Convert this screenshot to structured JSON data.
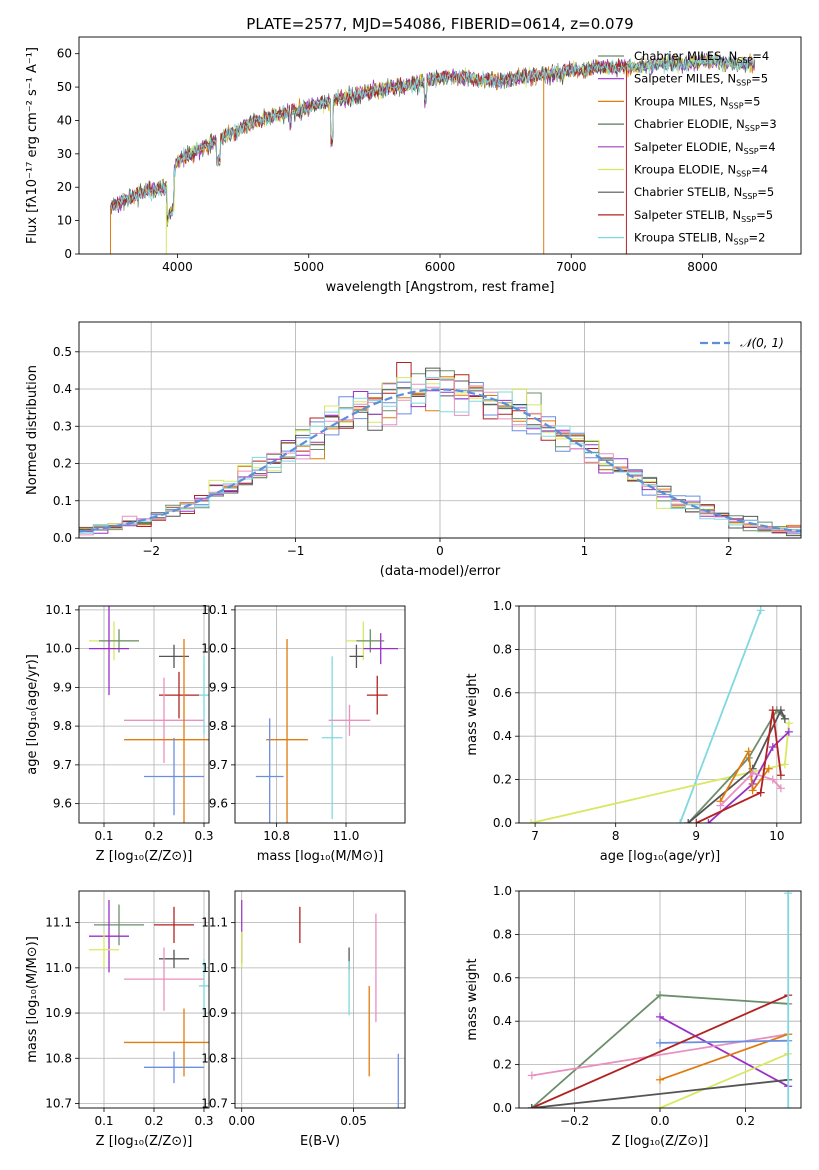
{
  "figure_title": "PLATE=2577, MJD=54086, FIBERID=0614, z=0.079",
  "colors": {
    "s1": "#6b8e6b",
    "s2": "#9b30c9",
    "s3": "#e07b10",
    "s4": "#5a7a5a",
    "s5": "#a040c0",
    "s6": "#d8e860",
    "s7": "#555555",
    "s8": "#b22222",
    "s9": "#80d8e0",
    "s10": "#6a8ee0",
    "s11": "#e890c0",
    "gauss": "#5b8fd9"
  },
  "chart_data": [
    {
      "type": "line",
      "xlabel": "wavelength [Angstrom, rest frame]",
      "ylabel": "Flux [fλ10⁻¹⁷ erg cm⁻² s⁻¹ A⁻¹]",
      "xlim": [
        3250,
        8750
      ],
      "ylim": [
        0,
        65
      ],
      "xticks": [
        4000,
        5000,
        6000,
        7000,
        8000
      ],
      "yticks": [
        0,
        10,
        20,
        30,
        40,
        50,
        60
      ],
      "legend_position": "top-right",
      "legend": [
        {
          "label": "Chabrier MILES, N",
          "sub": "SSP",
          "tail": "=4"
        },
        {
          "label": "Salpeter MILES, N",
          "sub": "SSP",
          "tail": "=5"
        },
        {
          "label": "Kroupa MILES, N",
          "sub": "SSP",
          "tail": "=5"
        },
        {
          "label": "Chabrier ELODIE, N",
          "sub": "SSP",
          "tail": "=3"
        },
        {
          "label": "Salpeter ELODIE, N",
          "sub": "SSP",
          "tail": "=4"
        },
        {
          "label": "Kroupa ELODIE, N",
          "sub": "SSP",
          "tail": "=4"
        },
        {
          "label": "Chabrier STELIB, N",
          "sub": "SSP",
          "tail": "=5"
        },
        {
          "label": "Salpeter STELIB, N",
          "sub": "SSP",
          "tail": "=5"
        },
        {
          "label": "Kroupa STELIB, N",
          "sub": "SSP",
          "tail": "=2"
        }
      ],
      "spectrum_envelope": {
        "x": [
          3500,
          3600,
          3700,
          3800,
          3900,
          3950,
          4000,
          4100,
          4200,
          4300,
          4400,
          4500,
          4600,
          4700,
          4800,
          4900,
          5000,
          5100,
          5200,
          5300,
          5400,
          5500,
          5600,
          5700,
          5800,
          5900,
          6000,
          6100,
          6200,
          6300,
          6400,
          6500,
          6600,
          6700,
          6800,
          6900,
          7000,
          7100,
          7200,
          7300,
          7400,
          7500,
          7600,
          7700,
          7800,
          7900,
          8000,
          8100,
          8200,
          8300
        ],
        "y": [
          14,
          16,
          18,
          19,
          20,
          22,
          28,
          30,
          32,
          34,
          36,
          38,
          40,
          41,
          42,
          43,
          44,
          45,
          46,
          47,
          48,
          49,
          50,
          50,
          51,
          52,
          53,
          53,
          53,
          52,
          52,
          52,
          53,
          53,
          54,
          54,
          55,
          55,
          56,
          56,
          56,
          56,
          57,
          57,
          57,
          57,
          58,
          58,
          57,
          57
        ]
      }
    },
    {
      "type": "bar",
      "xlabel": "(data-model)/error",
      "ylabel": "Normed distribution",
      "xlim": [
        -2.5,
        2.5
      ],
      "ylim": [
        0,
        0.58
      ],
      "xticks": [
        -2,
        -1,
        0,
        1,
        2
      ],
      "yticks": [
        0.0,
        0.1,
        0.2,
        0.3,
        0.4,
        0.5
      ],
      "legend_position": "top-right",
      "legend": [
        {
          "label": "𝒩(0, 1)"
        }
      ],
      "bin_width": 0.1
    },
    {
      "type": "scatter",
      "xlabel": "Z [log₁₀(Z/Z⊙)]",
      "ylabel": "age  [log₁₀(age/yr)]",
      "xlim": [
        0.05,
        0.31
      ],
      "ylim": [
        9.55,
        10.11
      ],
      "xticks": [
        0.1,
        0.2,
        0.3
      ],
      "yticks": [
        9.6,
        9.7,
        9.8,
        9.9,
        10.0,
        10.1
      ],
      "points": [
        {
          "x": 0.12,
          "y": 10.02,
          "xerr": 0.05,
          "yerr": 0.05,
          "c": "s6"
        },
        {
          "x": 0.13,
          "y": 10.02,
          "xerr": 0.04,
          "yerr": 0.03,
          "c": "s1"
        },
        {
          "x": 0.11,
          "y": 10.0,
          "xerr": 0.04,
          "yerr": 0.12,
          "c": "s2"
        },
        {
          "x": 0.24,
          "y": 9.98,
          "xerr": 0.03,
          "yerr": 0.03,
          "c": "s7"
        },
        {
          "x": 0.25,
          "y": 9.88,
          "xerr": 0.04,
          "yerr": 0.06,
          "c": "s8"
        },
        {
          "x": 0.3,
          "y": 9.88,
          "xerr": 0.01,
          "yerr": 0.1,
          "c": "s9"
        },
        {
          "x": 0.22,
          "y": 9.815,
          "xerr": 0.08,
          "yerr": 0.11,
          "c": "s11"
        },
        {
          "x": 0.26,
          "y": 9.765,
          "xerr": 0.12,
          "yerr": 0.26,
          "c": "s3"
        },
        {
          "x": 0.24,
          "y": 9.67,
          "xerr": 0.06,
          "yerr": 0.1,
          "c": "s10"
        }
      ]
    },
    {
      "type": "scatter",
      "xlabel": "mass [log₁₀(M/M⊙)]",
      "ylabel": "",
      "xlim": [
        10.68,
        11.17
      ],
      "ylim": [
        9.55,
        10.11
      ],
      "xticks": [
        10.8,
        11.0
      ],
      "yticks": [
        9.6,
        9.7,
        9.8,
        9.9,
        10.0,
        10.1
      ],
      "points": [
        {
          "x": 11.05,
          "y": 10.02,
          "xerr": 0.05,
          "yerr": 0.05,
          "c": "s6"
        },
        {
          "x": 11.07,
          "y": 10.02,
          "xerr": 0.04,
          "yerr": 0.03,
          "c": "s1"
        },
        {
          "x": 11.1,
          "y": 10.0,
          "xerr": 0.05,
          "yerr": 0.04,
          "c": "s2"
        },
        {
          "x": 11.03,
          "y": 9.98,
          "xerr": 0.02,
          "yerr": 0.03,
          "c": "s7"
        },
        {
          "x": 11.09,
          "y": 9.88,
          "xerr": 0.03,
          "yerr": 0.05,
          "c": "s8"
        },
        {
          "x": 10.96,
          "y": 9.77,
          "xerr": 0.03,
          "yerr": 0.21,
          "c": "s9"
        },
        {
          "x": 11.01,
          "y": 9.815,
          "xerr": 0.06,
          "yerr": 0.04,
          "c": "s11"
        },
        {
          "x": 10.83,
          "y": 9.765,
          "xerr": 0.06,
          "yerr": 0.26,
          "c": "s3"
        },
        {
          "x": 10.78,
          "y": 9.67,
          "xerr": 0.04,
          "yerr": 0.15,
          "c": "s10"
        }
      ]
    },
    {
      "type": "line",
      "xlabel": "age  [log₁₀(age/yr)]",
      "ylabel": "mass weight",
      "xlim": [
        6.8,
        10.3
      ],
      "ylim": [
        0,
        1.0
      ],
      "xticks": [
        7,
        8,
        9,
        10
      ],
      "yticks": [
        0.0,
        0.2,
        0.4,
        0.6,
        0.8,
        1.0
      ],
      "series": [
        {
          "c": "s9",
          "x": [
            8.8,
            9.8
          ],
          "y": [
            0.0,
            0.98
          ]
        },
        {
          "c": "s6",
          "x": [
            6.95,
            10.1,
            10.15
          ],
          "y": [
            0.0,
            0.27,
            0.46
          ]
        },
        {
          "c": "s1",
          "x": [
            8.9,
            9.65,
            10.0,
            10.1
          ],
          "y": [
            0.0,
            0.3,
            0.52,
            0.48
          ]
        },
        {
          "c": "s7",
          "x": [
            8.9,
            9.7,
            10.05,
            10.1
          ],
          "y": [
            0.0,
            0.25,
            0.52,
            0.48
          ]
        },
        {
          "c": "s2",
          "x": [
            9.15,
            9.7,
            9.95,
            10.15
          ],
          "y": [
            0.0,
            0.18,
            0.35,
            0.42
          ]
        },
        {
          "c": "s3",
          "x": [
            9.3,
            9.65,
            9.7,
            9.9
          ],
          "y": [
            0.1,
            0.33,
            0.15,
            0.25
          ]
        },
        {
          "c": "s11",
          "x": [
            9.3,
            9.7,
            9.95,
            10.05
          ],
          "y": [
            0.08,
            0.23,
            0.2,
            0.16
          ]
        },
        {
          "c": "s8",
          "x": [
            9.0,
            9.8,
            9.95,
            10.05
          ],
          "y": [
            0.0,
            0.14,
            0.52,
            0.22
          ]
        }
      ]
    },
    {
      "type": "scatter",
      "xlabel": "Z [log₁₀(Z/Z⊙)]",
      "ylabel": "mass [log₁₀(M/M⊙)]",
      "xlim": [
        0.05,
        0.31
      ],
      "ylim": [
        10.69,
        11.17
      ],
      "xticks": [
        0.1,
        0.2,
        0.3
      ],
      "yticks": [
        10.7,
        10.8,
        10.9,
        11.0,
        11.1
      ],
      "points": [
        {
          "x": 0.13,
          "y": 11.095,
          "xerr": 0.05,
          "yerr": 0.045,
          "c": "s1"
        },
        {
          "x": 0.11,
          "y": 11.07,
          "xerr": 0.04,
          "yerr": 0.08,
          "c": "s2"
        },
        {
          "x": 0.1,
          "y": 11.04,
          "xerr": 0.03,
          "yerr": 0.04,
          "c": "s6"
        },
        {
          "x": 0.24,
          "y": 11.095,
          "xerr": 0.04,
          "yerr": 0.04,
          "c": "s8"
        },
        {
          "x": 0.24,
          "y": 11.02,
          "xerr": 0.03,
          "yerr": 0.02,
          "c": "s7"
        },
        {
          "x": 0.3,
          "y": 10.96,
          "xerr": 0.01,
          "yerr": 0.06,
          "c": "s9"
        },
        {
          "x": 0.22,
          "y": 10.975,
          "xerr": 0.08,
          "yerr": 0.07,
          "c": "s11"
        },
        {
          "x": 0.26,
          "y": 10.835,
          "xerr": 0.12,
          "yerr": 0.075,
          "c": "s3"
        },
        {
          "x": 0.24,
          "y": 10.78,
          "xerr": 0.06,
          "yerr": 0.035,
          "c": "s10"
        }
      ]
    },
    {
      "type": "scatter",
      "xlabel": "E(B-V)",
      "ylabel": "",
      "xlim": [
        -0.003,
        0.073
      ],
      "ylim": [
        10.69,
        11.17
      ],
      "xticks": [
        0.0,
        0.05
      ],
      "yticks": [
        10.7,
        10.8,
        10.9,
        11.0,
        11.1
      ],
      "points": [
        {
          "x": 0.0,
          "y": 11.08,
          "yerr": 0.07,
          "c": "s5"
        },
        {
          "x": 0.0,
          "y": 11.04,
          "yerr": 0.04,
          "c": "s6"
        },
        {
          "x": 0.026,
          "y": 11.095,
          "yerr": 0.04,
          "c": "s8"
        },
        {
          "x": 0.048,
          "y": 11.02,
          "yerr": 0.025,
          "c": "s7"
        },
        {
          "x": 0.048,
          "y": 10.955,
          "yerr": 0.06,
          "c": "s9"
        },
        {
          "x": 0.06,
          "y": 11.0,
          "yerr": 0.12,
          "c": "s11"
        },
        {
          "x": 0.057,
          "y": 10.86,
          "yerr": 0.1,
          "c": "s3"
        },
        {
          "x": 0.07,
          "y": 10.745,
          "yerr": 0.065,
          "c": "s10"
        }
      ]
    },
    {
      "type": "line",
      "xlabel": "Z [log₁₀(Z/Z⊙)]",
      "ylabel": "mass weight",
      "xlim": [
        -0.33,
        0.33
      ],
      "ylim": [
        0,
        1.0
      ],
      "xticks": [
        -0.2,
        0.0,
        0.2
      ],
      "yticks": [
        0.0,
        0.2,
        0.4,
        0.6,
        0.8,
        1.0
      ],
      "series": [
        {
          "c": "s1",
          "x": [
            -0.3,
            0.0,
            0.3
          ],
          "y": [
            0.0,
            0.52,
            0.48
          ]
        },
        {
          "c": "s2",
          "x": [
            0.0,
            0.3
          ],
          "y": [
            0.42,
            0.1
          ]
        },
        {
          "c": "s11",
          "x": [
            -0.3,
            0.3
          ],
          "y": [
            0.15,
            0.34
          ]
        },
        {
          "c": "s3",
          "x": [
            0.0,
            0.3
          ],
          "y": [
            0.13,
            0.34
          ]
        },
        {
          "c": "s10",
          "x": [
            0.0,
            0.3
          ],
          "y": [
            0.3,
            0.31
          ]
        },
        {
          "c": "s6",
          "x": [
            0.0,
            0.3
          ],
          "y": [
            0.0,
            0.25
          ]
        },
        {
          "c": "s8",
          "x": [
            -0.3,
            0.3
          ],
          "y": [
            0.0,
            0.52
          ]
        },
        {
          "c": "s7",
          "x": [
            -0.3,
            0.3
          ],
          "y": [
            0.0,
            0.13
          ]
        },
        {
          "c": "s9",
          "x": [
            0.3,
            0.3
          ],
          "y": [
            0.0,
            0.99
          ]
        }
      ]
    }
  ]
}
